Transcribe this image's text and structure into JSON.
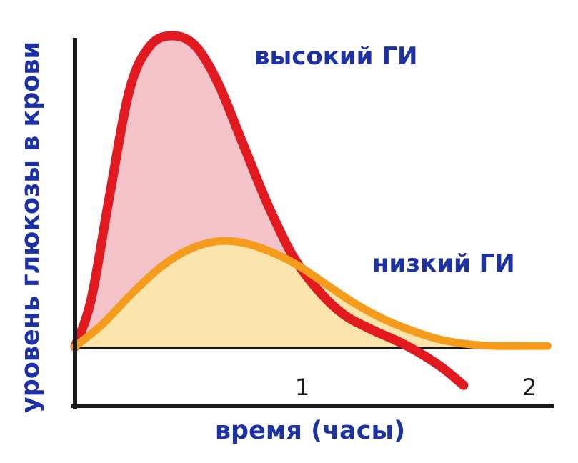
{
  "chart_data": {
    "type": "line",
    "title": "",
    "xlabel": "время (часы)",
    "ylabel": "уровень глюкозы в крови",
    "x_ticks": [
      "1",
      "2"
    ],
    "x_unit": "hours",
    "x_range_hours": [
      0,
      2.1
    ],
    "baseline_level": 0,
    "axis_color": "#1a1a1a",
    "label_color": "#1c31a5",
    "legend_position": "inline-annotations",
    "grid": false,
    "series": [
      {
        "name": "высокий ГИ",
        "id": "high-gi",
        "line_color": "#e2191f",
        "fill_color": "#f4c3c9",
        "points": [
          [
            0.0,
            0.02
          ],
          [
            0.07,
            0.7
          ],
          [
            0.15,
            2.2
          ],
          [
            0.24,
            3.8
          ],
          [
            0.33,
            4.45
          ],
          [
            0.43,
            4.6
          ],
          [
            0.53,
            4.45
          ],
          [
            0.63,
            3.9
          ],
          [
            0.74,
            3.0
          ],
          [
            0.85,
            2.1
          ],
          [
            0.96,
            1.35
          ],
          [
            1.07,
            0.85
          ],
          [
            1.18,
            0.5
          ],
          [
            1.3,
            0.28
          ],
          [
            1.42,
            0.1
          ],
          [
            1.52,
            -0.08
          ],
          [
            1.62,
            -0.3
          ],
          [
            1.71,
            -0.55
          ]
        ]
      },
      {
        "name": "низкий ГИ",
        "id": "low-gi",
        "line_color": "#f59c1c",
        "fill_color": "#fce4ad",
        "points": [
          [
            0.0,
            0.02
          ],
          [
            0.12,
            0.35
          ],
          [
            0.25,
            0.8
          ],
          [
            0.38,
            1.2
          ],
          [
            0.5,
            1.45
          ],
          [
            0.62,
            1.57
          ],
          [
            0.74,
            1.55
          ],
          [
            0.86,
            1.42
          ],
          [
            0.98,
            1.22
          ],
          [
            1.1,
            0.95
          ],
          [
            1.22,
            0.68
          ],
          [
            1.35,
            0.44
          ],
          [
            1.48,
            0.26
          ],
          [
            1.6,
            0.13
          ],
          [
            1.72,
            0.06
          ],
          [
            1.85,
            0.03
          ],
          [
            2.0,
            0.03
          ],
          [
            2.08,
            0.03
          ]
        ]
      }
    ]
  }
}
